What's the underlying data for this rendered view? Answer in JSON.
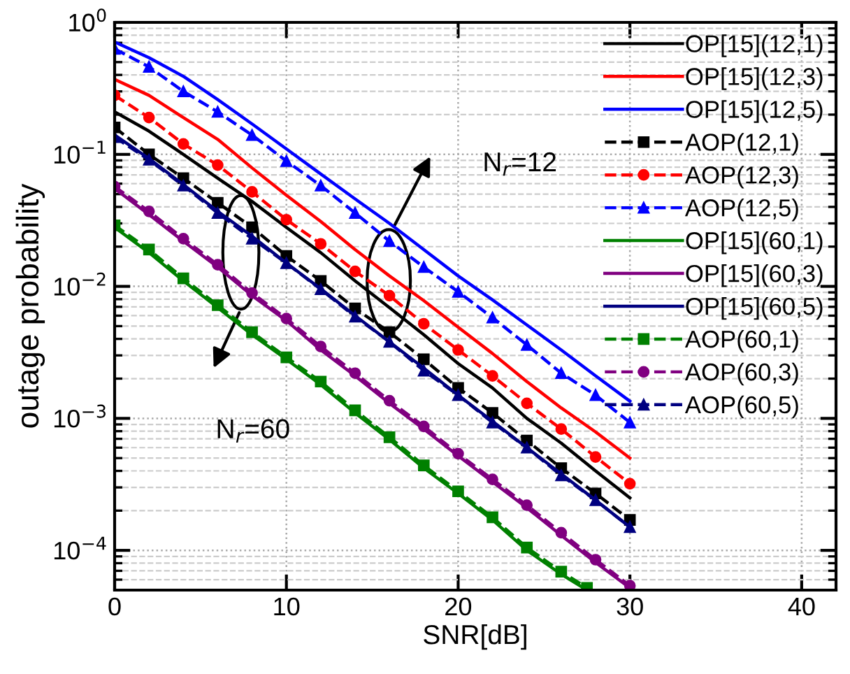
{
  "chart_data": {
    "type": "line",
    "xlabel": "SNR[dB]",
    "ylabel": "outage probability",
    "x": [
      0,
      2,
      4,
      6,
      8,
      10,
      12,
      14,
      16,
      18,
      20,
      22,
      24,
      26,
      28,
      30
    ],
    "series": [
      {
        "name": "OP[15](12,1)",
        "color": "#000000",
        "line_style": "solid",
        "marker": "none",
        "values": [
          0.21,
          0.15,
          0.1,
          0.066,
          0.044,
          0.028,
          0.018,
          0.011,
          0.0069,
          0.0043,
          0.0026,
          0.0017,
          0.001,
          0.00065,
          0.0004,
          0.00025
        ]
      },
      {
        "name": "OP[15](12,3)",
        "color": "#ff0000",
        "line_style": "solid",
        "marker": "none",
        "values": [
          0.37,
          0.28,
          0.19,
          0.13,
          0.079,
          0.049,
          0.031,
          0.019,
          0.012,
          0.0078,
          0.0049,
          0.0031,
          0.0019,
          0.0012,
          0.00079,
          0.0005
        ]
      },
      {
        "name": "OP[15](12,5)",
        "color": "#0000ff",
        "line_style": "solid",
        "marker": "none",
        "values": [
          0.71,
          0.54,
          0.39,
          0.26,
          0.17,
          0.11,
          0.071,
          0.046,
          0.03,
          0.019,
          0.012,
          0.0079,
          0.0051,
          0.0033,
          0.0021,
          0.00135
        ]
      },
      {
        "name": "AOP(12,1)",
        "color": "#000000",
        "line_style": "dashed",
        "marker": "square",
        "values": [
          0.16,
          0.1,
          0.066,
          0.043,
          0.028,
          0.017,
          0.011,
          0.0068,
          0.0045,
          0.0028,
          0.0017,
          0.0011,
          0.00068,
          0.00042,
          0.00027,
          0.00017
        ]
      },
      {
        "name": "AOP(12,3)",
        "color": "#ff0000",
        "line_style": "dashed",
        "marker": "circle",
        "values": [
          0.28,
          0.19,
          0.12,
          0.083,
          0.052,
          0.032,
          0.021,
          0.013,
          0.0085,
          0.0052,
          0.0033,
          0.0021,
          0.0013,
          0.00083,
          0.00051,
          0.00032
        ]
      },
      {
        "name": "AOP(12,5)",
        "color": "#0000ff",
        "line_style": "dashed",
        "marker": "triangle",
        "values": [
          0.63,
          0.46,
          0.3,
          0.21,
          0.14,
          0.089,
          0.058,
          0.036,
          0.022,
          0.014,
          0.0091,
          0.0058,
          0.0036,
          0.0022,
          0.0015,
          0.00093
        ]
      },
      {
        "name": "OP[15](60,1)",
        "color": "#008000",
        "line_style": "solid",
        "marker": "none",
        "x": [
          0,
          2,
          4,
          6,
          8,
          10,
          12,
          14,
          16,
          18,
          20,
          22,
          24,
          26,
          27.5
        ],
        "values": [
          0.028,
          0.018,
          0.011,
          0.0069,
          0.0043,
          0.0028,
          0.0018,
          0.0011,
          0.00069,
          0.00042,
          0.00027,
          0.00017,
          0.0001,
          6.6e-05,
          5e-05
        ]
      },
      {
        "name": "OP[15](60,3)",
        "color": "#800080",
        "line_style": "solid",
        "marker": "none",
        "values": [
          0.055,
          0.035,
          0.022,
          0.014,
          0.0085,
          0.0055,
          0.0033,
          0.0021,
          0.0013,
          0.00083,
          0.00052,
          0.00033,
          0.00021,
          0.00013,
          8.1e-05,
          5.2e-05
        ]
      },
      {
        "name": "OP[15](60,5)",
        "color": "#000080",
        "line_style": "solid",
        "marker": "none",
        "values": [
          0.14,
          0.093,
          0.059,
          0.037,
          0.024,
          0.015,
          0.0096,
          0.006,
          0.0038,
          0.0024,
          0.0015,
          0.00095,
          0.0006,
          0.00038,
          0.00024,
          0.00015
        ]
      },
      {
        "name": "AOP(60,1)",
        "color": "#008000",
        "line_style": "dashed",
        "marker": "square",
        "x": [
          0,
          2,
          4,
          6,
          8,
          10,
          12,
          14,
          16,
          18,
          20,
          22,
          24,
          26,
          27.5
        ],
        "values": [
          0.029,
          0.019,
          0.0115,
          0.0072,
          0.0045,
          0.0029,
          0.0019,
          0.00115,
          0.00072,
          0.00044,
          0.00028,
          0.000178,
          0.000105,
          6.9e-05,
          5.2e-05
        ]
      },
      {
        "name": "AOP(60,3)",
        "color": "#800080",
        "line_style": "dashed",
        "marker": "circle",
        "values": [
          0.057,
          0.037,
          0.023,
          0.0146,
          0.0089,
          0.0057,
          0.0035,
          0.0022,
          0.00136,
          0.00087,
          0.00054,
          0.000345,
          0.00022,
          0.000136,
          8.5e-05,
          5.4e-05
        ]
      },
      {
        "name": "AOP(60,5)",
        "color": "#000080",
        "line_style": "dashed",
        "marker": "triangle",
        "values": [
          0.135,
          0.091,
          0.058,
          0.036,
          0.023,
          0.015,
          0.0095,
          0.0059,
          0.0038,
          0.0023,
          0.0015,
          0.00093,
          0.0006,
          0.00037,
          0.00024,
          0.00015
        ]
      }
    ],
    "log": "y",
    "xlim": [
      0,
      42
    ],
    "xticks": [
      0,
      10,
      20,
      30,
      40
    ],
    "ylim": [
      5e-05,
      1
    ],
    "yticks": [
      {
        "value": 0.0001,
        "label": "10$^{−4}$"
      },
      {
        "value": 0.001,
        "label": "10$^{−3}$"
      },
      {
        "value": 0.01,
        "label": "10$^{−2}$"
      },
      {
        "value": 0.1,
        "label": "10$^{−1}$"
      },
      {
        "value": 1,
        "label": "10$^{0}$"
      }
    ],
    "grid": true,
    "legend": "top right",
    "annotations": [
      "N$_{r}$=12",
      "N$_{r}$=60"
    ]
  }
}
